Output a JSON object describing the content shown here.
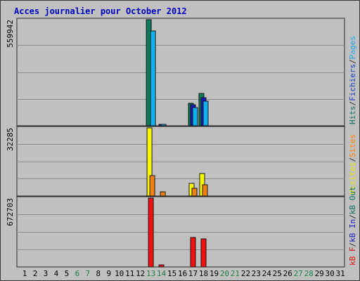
{
  "chart_data": {
    "type": "bar",
    "title": "Acces journalier pour October 2012",
    "categories": [
      "1",
      "2",
      "3",
      "4",
      "5",
      "6",
      "7",
      "8",
      "9",
      "10",
      "11",
      "12",
      "13",
      "14",
      "15",
      "16",
      "17",
      "18",
      "19",
      "20",
      "21",
      "22",
      "23",
      "24",
      "25",
      "26",
      "27",
      "28",
      "29",
      "30",
      "31"
    ],
    "weekend_days": [
      "6",
      "7",
      "13",
      "14",
      "20",
      "21",
      "27",
      "28"
    ],
    "panels": [
      {
        "name": "traffic",
        "ymax_label": "559942",
        "ymax": 559942,
        "legend": [
          {
            "text": "Hits",
            "color": "#107060"
          },
          {
            "text": "/",
            "color": "#303030"
          },
          {
            "text": "Fichiers",
            "color": "#2040c0"
          },
          {
            "text": "/",
            "color": "#303030"
          },
          {
            "text": "Pages",
            "color": "#20a8f0"
          }
        ],
        "series": [
          {
            "name": "Hits",
            "color": "#0e7a5c",
            "values": [
              0,
              0,
              0,
              0,
              0,
              0,
              0,
              0,
              0,
              0,
              0,
              0,
              559942,
              0,
              0,
              0,
              117000,
              169000,
              0,
              0,
              0,
              0,
              0,
              0,
              0,
              0,
              0,
              0,
              0,
              0,
              0
            ]
          },
          {
            "name": "Fichiers",
            "color": "#1818c0",
            "values": [
              0,
              0,
              0,
              0,
              0,
              0,
              0,
              0,
              0,
              0,
              0,
              0,
              0,
              8000,
              0,
              0,
              110000,
              148000,
              0,
              0,
              0,
              0,
              0,
              0,
              0,
              0,
              0,
              0,
              0,
              0,
              0
            ]
          },
          {
            "name": "Pages",
            "color": "#10b0f0",
            "values": [
              0,
              0,
              0,
              0,
              0,
              0,
              0,
              0,
              0,
              0,
              0,
              0,
              500000,
              8000,
              0,
              0,
              98000,
              130000,
              0,
              0,
              0,
              0,
              0,
              0,
              0,
              0,
              0,
              0,
              0,
              0,
              0
            ]
          }
        ]
      },
      {
        "name": "visits",
        "ymax_label": "32285",
        "ymax": 32285,
        "legend": [
          {
            "text": "Visites",
            "color": "#e8e800"
          },
          {
            "text": "/",
            "color": "#303030"
          },
          {
            "text": "Sites",
            "color": "#ff8000"
          }
        ],
        "series": [
          {
            "name": "Visites",
            "color": "#f8f800",
            "values": [
              0,
              0,
              0,
              0,
              0,
              0,
              0,
              0,
              0,
              0,
              0,
              0,
              32285,
              0,
              0,
              0,
              5900,
              10800,
              0,
              0,
              0,
              0,
              0,
              0,
              0,
              0,
              0,
              0,
              0,
              0,
              0
            ]
          },
          {
            "name": "Sites",
            "color": "#f08010",
            "values": [
              0,
              0,
              0,
              0,
              0,
              0,
              0,
              0,
              0,
              0,
              0,
              0,
              9500,
              2100,
              0,
              0,
              3800,
              5300,
              0,
              0,
              0,
              0,
              0,
              0,
              0,
              0,
              0,
              0,
              0,
              0,
              0
            ]
          }
        ]
      },
      {
        "name": "bandwidth",
        "ymax_label": "672703",
        "ymax": 672703,
        "legend": [
          {
            "text": "kB F",
            "color": "#e01010"
          },
          {
            "text": "/",
            "color": "#303030"
          },
          {
            "text": "kB In",
            "color": "#2020c0"
          },
          {
            "text": "/",
            "color": "#303030"
          },
          {
            "text": "kB Out",
            "color": "#107060"
          }
        ],
        "series": [
          {
            "name": "kB F",
            "color": "#f01010",
            "values": [
              0,
              0,
              0,
              0,
              0,
              0,
              0,
              0,
              0,
              0,
              0,
              0,
              672703,
              18000,
              0,
              0,
              285000,
              278000,
              0,
              0,
              0,
              0,
              0,
              0,
              0,
              0,
              0,
              0,
              0,
              0,
              0
            ]
          }
        ]
      }
    ]
  }
}
